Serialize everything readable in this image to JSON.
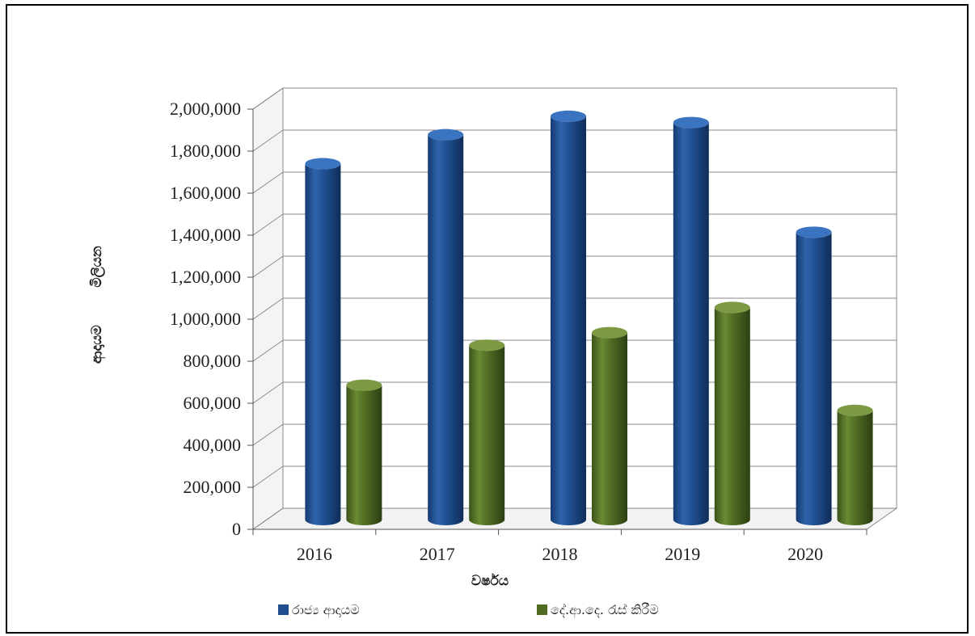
{
  "chart_data": {
    "type": "bar",
    "title": "",
    "xlabel": "වර්ෂය",
    "ylabel": "ආදායම මිලියන",
    "ylabel_parts": [
      "ආදායම",
      "මිලියන"
    ],
    "categories": [
      "2016",
      "2017",
      "2018",
      "2019",
      "2020"
    ],
    "ylim": [
      0,
      2000000
    ],
    "yticks": [
      0,
      200000,
      400000,
      600000,
      800000,
      1000000,
      1200000,
      1400000,
      1600000,
      1800000,
      2000000
    ],
    "ytick_labels": [
      "0",
      "200,000",
      "400,000",
      "600,000",
      "800,000",
      "1,000,000",
      "1,200,000",
      "1,400,000",
      "1,600,000",
      "1,800,000",
      "2,000,000"
    ],
    "grid": true,
    "style": "3d-cylinder",
    "legend_position": "bottom",
    "series": [
      {
        "name": "රාජ්‍ය ආදායම",
        "color": "#1f4e8f",
        "values": [
          1694000,
          1832000,
          1920000,
          1890000,
          1368000
        ]
      },
      {
        "name": "දේ.ආ.දෙ. රැස් කිරීම",
        "color": "#4f6b22",
        "values": [
          640000,
          830000,
          890000,
          1010000,
          520000
        ]
      }
    ]
  }
}
